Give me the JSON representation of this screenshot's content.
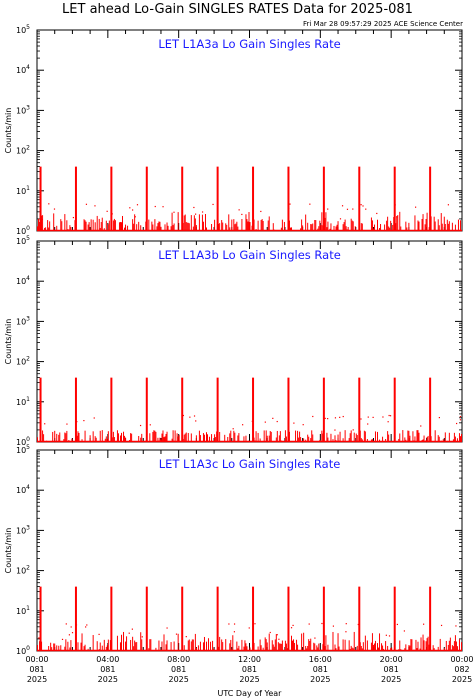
{
  "header": {
    "title": "LET ahead Lo-Gain SINGLES RATES Data for 2025-081",
    "timestamp": "Fri Mar 28 09:57:29 2025 ACE Science Center"
  },
  "chart_data": [
    {
      "type": "line",
      "title": "LET L1A3a Lo Gain Singles Rate",
      "ylabel": "Counts/min",
      "yscale": "log",
      "ylim": [
        1,
        100000
      ],
      "xlim": [
        0,
        24
      ],
      "series_color": "#ff0000",
      "baseline_max": 3,
      "spike_hours": [
        0.2,
        2.2,
        4.2,
        6.2,
        8.2,
        10.2,
        12.2,
        14.2,
        16.2,
        18.2,
        20.2,
        22.2
      ],
      "spike_value": 40
    },
    {
      "type": "line",
      "title": "LET L1A3b Lo Gain Singles Rate",
      "ylabel": "Counts/min",
      "yscale": "log",
      "ylim": [
        1,
        100000
      ],
      "xlim": [
        0,
        24
      ],
      "series_color": "#ff0000",
      "baseline_max": 2,
      "spike_hours": [
        0.2,
        2.2,
        4.2,
        6.2,
        8.2,
        10.2,
        12.2,
        14.2,
        16.2,
        18.2,
        20.2,
        22.2
      ],
      "spike_value": 40
    },
    {
      "type": "line",
      "title": "LET L1A3c Lo Gain Singles Rate",
      "ylabel": "Counts/min",
      "yscale": "log",
      "ylim": [
        1,
        100000
      ],
      "xlim": [
        0,
        24
      ],
      "series_color": "#ff0000",
      "baseline_max": 3,
      "spike_hours": [
        0.2,
        2.2,
        4.2,
        6.2,
        8.2,
        10.2,
        12.2,
        14.2,
        16.2,
        18.2,
        20.2,
        22.2
      ],
      "spike_value": 40
    }
  ],
  "xaxis": {
    "label": "UTC Day of Year",
    "ticks": [
      {
        "hour": 0,
        "time": "00:00",
        "doy": "081",
        "year": "2025"
      },
      {
        "hour": 4,
        "time": "04:00",
        "doy": "081",
        "year": "2025"
      },
      {
        "hour": 8,
        "time": "08:00",
        "doy": "081",
        "year": "2025"
      },
      {
        "hour": 12,
        "time": "12:00",
        "doy": "081",
        "year": "2025"
      },
      {
        "hour": 16,
        "time": "16:00",
        "doy": "081",
        "year": "2025"
      },
      {
        "hour": 20,
        "time": "20:00",
        "doy": "081",
        "year": "2025"
      },
      {
        "hour": 24,
        "time": "00:00",
        "doy": "082",
        "year": "2025"
      }
    ]
  },
  "yaxis": {
    "decades": [
      0,
      1,
      2,
      3,
      4,
      5
    ],
    "tick_labels": [
      "10^0",
      "10^1",
      "10^2",
      "10^3",
      "10^4",
      "10^5"
    ]
  }
}
